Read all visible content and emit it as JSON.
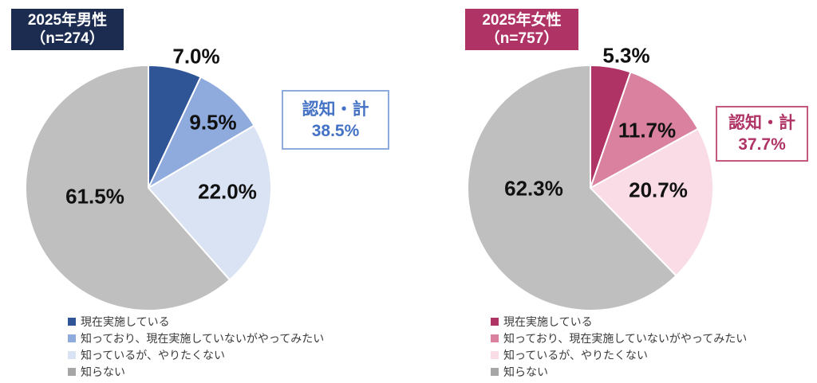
{
  "page": {
    "background": "#ffffff",
    "text_color": "#111111"
  },
  "chart_data": [
    {
      "type": "pie",
      "title_line1": "2025年男性",
      "title_line2": "（n=274）",
      "title": "2025年男性（n=274）",
      "title_bg": "#1b2c50",
      "title_fg": "#ffffff",
      "categories": [
        "現在実施している",
        "知っており、現在実施していないがやってみたい",
        "知っているが、やりたくない",
        "知らない"
      ],
      "values": [
        7.0,
        9.5,
        22.0,
        61.5
      ],
      "value_labels": [
        "7.0%",
        "9.5%",
        "22.0%",
        "61.5%"
      ],
      "slice_colors": [
        "#2f5597",
        "#8faadc",
        "#dae3f3",
        "#bfbfbf"
      ],
      "legend_colors": [
        "#2f5597",
        "#8faadc",
        "#dae3f3",
        "#a6a6a6"
      ],
      "start_angle": "top",
      "direction": "clockwise",
      "legend_position": "bottom-left",
      "annotation_line1": "認知・計",
      "annotation_line2": "38.5%",
      "annotation_text_color": "#4472c4",
      "annotation_border_color": "#8faadc"
    },
    {
      "type": "pie",
      "title_line1": "2025年女性",
      "title_line2": "（n=757）",
      "title": "2025年女性（n=757）",
      "title_bg": "#b03366",
      "title_fg": "#ffffff",
      "categories": [
        "現在実施している",
        "知っており、現在実施していないがやってみたい",
        "知っているが、やりたくない",
        "知らない"
      ],
      "values": [
        5.3,
        11.7,
        20.7,
        62.3
      ],
      "value_labels": [
        "5.3%",
        "11.7%",
        "20.7%",
        "62.3%"
      ],
      "slice_colors": [
        "#b03366",
        "#d9819f",
        "#f9dce5",
        "#bfbfbf"
      ],
      "legend_colors": [
        "#b03366",
        "#d9819f",
        "#f9dce5",
        "#a6a6a6"
      ],
      "start_angle": "top",
      "direction": "clockwise",
      "legend_position": "bottom-left",
      "annotation_line1": "認知・計",
      "annotation_line2": "37.7%",
      "annotation_text_color": "#b03366",
      "annotation_border_color": "#c4587f"
    }
  ]
}
